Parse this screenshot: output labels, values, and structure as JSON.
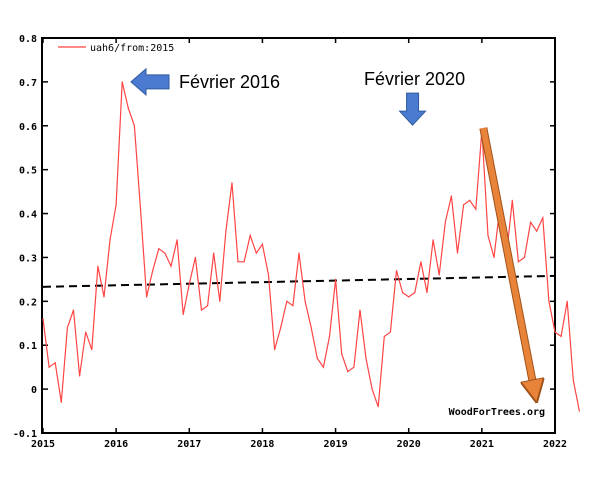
{
  "chart_data": {
    "type": "line",
    "title": "",
    "xlabel": "",
    "ylabel": "",
    "xlim": [
      2015,
      2022
    ],
    "ylim": [
      -0.1,
      0.8
    ],
    "x_ticks": [
      "2015",
      "2016",
      "2017",
      "2018",
      "2019",
      "2020",
      "2021",
      "2022"
    ],
    "y_ticks": [
      "0.8",
      "0.7",
      "0.6",
      "0.5",
      "0.4",
      "0.3",
      "0.2",
      "0.1",
      "0",
      "-0.1"
    ],
    "legend": {
      "position": "top-left",
      "entries": [
        "uah6/from:2015"
      ]
    },
    "credit": "WoodForTrees.org",
    "series": [
      {
        "name": "uah6/from:2015",
        "color": "#ff4444",
        "x_start": "2015-01",
        "step": "month",
        "values": [
          0.16,
          0.05,
          0.06,
          -0.03,
          0.14,
          0.18,
          0.03,
          0.13,
          0.09,
          0.28,
          0.21,
          0.34,
          0.42,
          0.7,
          0.64,
          0.6,
          0.41,
          0.21,
          0.27,
          0.32,
          0.31,
          0.28,
          0.34,
          0.17,
          0.24,
          0.3,
          0.18,
          0.19,
          0.31,
          0.2,
          0.36,
          0.47,
          0.29,
          0.29,
          0.35,
          0.31,
          0.33,
          0.26,
          0.09,
          0.14,
          0.2,
          0.19,
          0.31,
          0.2,
          0.14,
          0.07,
          0.05,
          0.12,
          0.25,
          0.08,
          0.04,
          0.05,
          0.18,
          0.07,
          0.0,
          -0.04,
          0.12,
          0.13,
          0.27,
          0.22,
          0.21,
          0.22,
          0.29,
          0.22,
          0.34,
          0.26,
          0.38,
          0.44,
          0.31,
          0.42,
          0.43,
          0.41,
          0.59,
          0.35,
          0.3,
          0.42,
          0.3,
          0.43,
          0.29,
          0.3,
          0.38,
          0.36,
          0.39,
          0.2,
          0.13,
          0.12,
          0.2,
          0.02,
          -0.05
        ]
      }
    ],
    "trend_line": {
      "style": "dashed",
      "color": "#000000",
      "x": [
        2015,
        2022
      ],
      "y": [
        0.233,
        0.258
      ]
    },
    "annotations": [
      {
        "text": "Février 2016",
        "x": 2016.08,
        "y": 0.7,
        "arrow": "blue-left"
      },
      {
        "text": "Février 2020",
        "x": 2020.08,
        "y": 0.59,
        "arrow": "blue-down"
      },
      {
        "text": "",
        "x": 2021.02,
        "y": 0.595,
        "x_end": 2021.72,
        "y_end": -0.005,
        "arrow": "orange-diagonal"
      }
    ],
    "grid": false
  }
}
